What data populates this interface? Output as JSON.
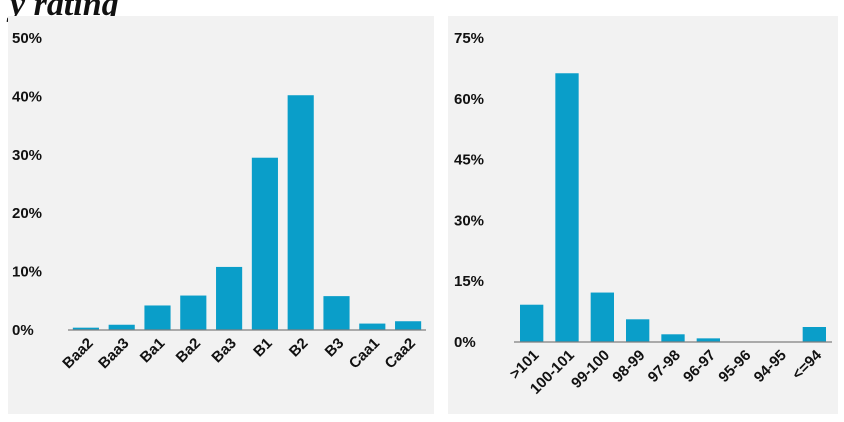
{
  "header": {
    "title": "y rating"
  },
  "colors": {
    "bar": "#0a9ec9",
    "panel": "#f2f2f2",
    "axis": "#7f7f7f"
  },
  "chart_data": [
    {
      "type": "bar",
      "categories": [
        "Baa2",
        "Baa3",
        "Ba1",
        "Ba2",
        "Ba3",
        "B1",
        "B2",
        "B3",
        "Caa1",
        "Caa2"
      ],
      "values": [
        0.4,
        0.9,
        4.2,
        5.9,
        10.8,
        29.5,
        40.2,
        5.8,
        1.1,
        1.5
      ],
      "ylim": [
        0,
        50
      ],
      "yticks": [
        0,
        10,
        20,
        30,
        40,
        50
      ],
      "ytick_labels": [
        "0%",
        "10%",
        "20%",
        "30%",
        "40%",
        "50%"
      ],
      "grid": false
    },
    {
      "type": "bar",
      "categories": [
        ">101",
        "100-101",
        "99-100",
        "98-99",
        "97-98",
        "96-97",
        "95-96",
        "94-95",
        "<=94"
      ],
      "values": [
        9.2,
        66.3,
        12.2,
        5.6,
        1.9,
        0.9,
        0,
        0,
        3.7
      ],
      "ylim": [
        0,
        75
      ],
      "yticks": [
        0,
        15,
        30,
        45,
        60,
        75
      ],
      "ytick_labels": [
        "0%",
        "15%",
        "30%",
        "45%",
        "60%",
        "75%"
      ],
      "grid": false
    }
  ]
}
